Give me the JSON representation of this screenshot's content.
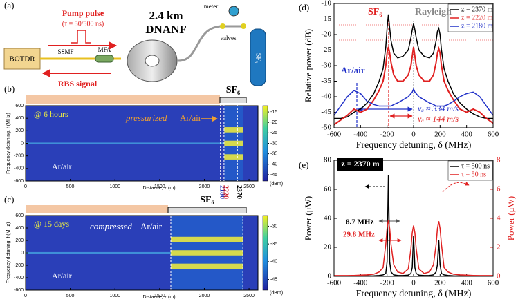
{
  "figure": {
    "panel_labels": [
      "(a)",
      "(b)",
      "(c)",
      "(d)",
      "(e)"
    ]
  },
  "setup": {
    "pump_pulse": "Pump pulse",
    "pulse_width": "(τ = 50/500 ns)",
    "fiber_length": "2.4 km",
    "fiber": "DNANF",
    "meter": "meter",
    "valves": "valves",
    "gas": "SF₆",
    "interrogator": "BOTDR",
    "ssmf": "SSMF",
    "mfa": "MFA",
    "rbs": "RBS signal"
  },
  "heatmaps": [
    {
      "gas_label": "SF₆",
      "time": "@ 6 hours",
      "annotation": [
        "pressurized",
        "Ar/air"
      ],
      "region": "Ar/air",
      "xlabel": "Distance, z (m)",
      "ylabel": "Frequency detuning, f (MHz)",
      "xlim": [
        0,
        2600
      ],
      "xticks": [
        0,
        500,
        1000,
        1500,
        2000,
        2500
      ],
      "ylim": [
        -600,
        600
      ],
      "yticks": [
        600,
        400,
        200,
        0,
        -200,
        -400,
        -600
      ],
      "markers": [
        2180,
        2220,
        2370
      ],
      "marker_colors": [
        "#1f2fb0",
        "#d0202a",
        "#000000"
      ],
      "clim": [
        -48,
        -12
      ],
      "cticks": [
        -15,
        -20,
        -25,
        -30,
        -35,
        -40,
        -45
      ],
      "cunit": "(dBm)"
    },
    {
      "gas_label": "SF₆",
      "time": "@ 15 days",
      "annotation": [
        "compressed",
        "Ar/air"
      ],
      "region": "Ar/air",
      "xlabel": "Distance, z (m)",
      "ylabel": "Frequency detuning, f (MHz)",
      "xlim": [
        0,
        2600
      ],
      "xticks": [
        0,
        500,
        1000,
        1500,
        2000,
        2500
      ],
      "ylim": [
        -600,
        600
      ],
      "yticks": [
        600,
        400,
        200,
        0,
        -200,
        -400,
        -600
      ],
      "clim": [
        -48,
        -27
      ],
      "cticks": [
        -30,
        -35,
        -40,
        -45
      ],
      "cunit": "(dBm)"
    }
  ],
  "chart_data": [
    {
      "type": "line",
      "xlabel": "Frequency detuning, δ (MHz)",
      "ylabel": "Relative power (dB)",
      "xlim": [
        -600,
        600
      ],
      "xticks": [
        -600,
        -400,
        -200,
        0,
        200,
        400,
        600
      ],
      "ylim": [
        -50,
        -10
      ],
      "yticks": [
        -50,
        -45,
        -40,
        -35,
        -30,
        -25,
        -20,
        -15,
        -10
      ],
      "legend": "top-right",
      "annotations": {
        "sf6": "SF₆",
        "rayleigh": "Rayleigh",
        "arair": "Ar/air",
        "va1": "vₐ ≈ 334 m/s",
        "va2": "vₐ ≈ 144 m/s"
      },
      "x": [
        -600,
        -550,
        -500,
        -450,
        -400,
        -350,
        -300,
        -260,
        -230,
        -210,
        -200,
        -190,
        -180,
        -170,
        -150,
        -120,
        -80,
        -40,
        -20,
        -10,
        0,
        10,
        20,
        40,
        80,
        120,
        150,
        170,
        180,
        190,
        200,
        210,
        230,
        260,
        300,
        350,
        400,
        450,
        500,
        550,
        600
      ],
      "series": [
        {
          "name": "z = 2370 m",
          "color": "#000000",
          "values": [
            -47,
            -47,
            -46.5,
            -45,
            -44,
            -42,
            -39,
            -35,
            -31,
            -24,
            -18,
            -13.5,
            -18,
            -22,
            -26,
            -27.5,
            -27,
            -25,
            -21,
            -18.5,
            -16.5,
            -18.5,
            -21,
            -25,
            -27,
            -27.5,
            -26,
            -22,
            -19,
            -18,
            -20,
            -25,
            -31,
            -35,
            -39,
            -42,
            -44,
            -45.5,
            -46.5,
            -47,
            -47
          ]
        },
        {
          "name": "z = 2220 m",
          "color": "#e02020",
          "values": [
            -49,
            -47.5,
            -46,
            -44,
            -45,
            -44,
            -41,
            -38,
            -35,
            -30,
            -26,
            -24,
            -26,
            -29,
            -33,
            -35,
            -35,
            -33,
            -30,
            -27,
            -24,
            -27,
            -30,
            -33,
            -35,
            -35,
            -33,
            -29,
            -26,
            -24.5,
            -26,
            -30,
            -35,
            -38,
            -41,
            -44,
            -45,
            -44,
            -45,
            -47,
            -48.5
          ]
        },
        {
          "name": "z = 2180 m",
          "color": "#2030c8",
          "values": [
            -46,
            -43,
            -40,
            -38,
            -39,
            -41.5,
            -42.5,
            -43,
            -43,
            -43,
            -43,
            -43,
            -43,
            -43,
            -42.5,
            -42,
            -41,
            -40,
            -39,
            -38.5,
            -37.5,
            -38.5,
            -39,
            -40,
            -41,
            -42,
            -42.5,
            -43,
            -43,
            -43,
            -43,
            -43,
            -43,
            -42.5,
            -41.5,
            -40,
            -39,
            -38.5,
            -40,
            -43,
            -46
          ]
        }
      ]
    },
    {
      "type": "line",
      "xlabel": "Frequency detuning, δ (MHz)",
      "ylabel": "Power (μW)",
      "y2label": "Power (μW)",
      "xlim": [
        -600,
        600
      ],
      "xticks": [
        -600,
        -400,
        -200,
        0,
        200,
        400,
        600
      ],
      "ylim": [
        0,
        80
      ],
      "yticks": [
        0,
        20,
        40,
        60,
        80
      ],
      "y2lim": [
        0,
        8
      ],
      "y2ticks": [
        0,
        2,
        4,
        6,
        8
      ],
      "legend": "top-right",
      "annotations": {
        "z": "z = 2370 m",
        "w1": "8.7 MHz",
        "w2": "29.8 MHz"
      },
      "x": [
        -600,
        -550,
        -500,
        -450,
        -400,
        -350,
        -300,
        -260,
        -230,
        -210,
        -200,
        -190,
        -180,
        -170,
        -150,
        -120,
        -80,
        -40,
        -20,
        -10,
        0,
        10,
        20,
        40,
        80,
        120,
        150,
        170,
        180,
        190,
        200,
        210,
        230,
        260,
        300,
        350,
        400,
        450,
        500,
        550,
        600
      ],
      "series": [
        {
          "name": "τ = 500 ns",
          "color": "#000000",
          "values": [
            0.2,
            0.2,
            0.2,
            0.2,
            0.3,
            0.3,
            0.4,
            0.6,
            1,
            2,
            10,
            70,
            10,
            3,
            1,
            0.6,
            0.5,
            0.8,
            2,
            6,
            28,
            6,
            2,
            0.8,
            0.5,
            0.6,
            1,
            3,
            8,
            25,
            8,
            2,
            1,
            0.6,
            0.4,
            0.3,
            0.3,
            0.2,
            0.2,
            0.2,
            0.2
          ]
        },
        {
          "name": "τ = 50 ns",
          "color": "#e02020",
          "axis": "y2",
          "values": [
            0.05,
            0.05,
            0.05,
            0.06,
            0.08,
            0.1,
            0.15,
            0.3,
            0.6,
            2.2,
            3.3,
            3.9,
            3.3,
            2.2,
            0.8,
            0.3,
            0.2,
            0.5,
            1.9,
            3,
            3.5,
            3,
            1.9,
            0.5,
            0.2,
            0.3,
            0.8,
            2.2,
            3.3,
            3.8,
            3.3,
            2.2,
            0.6,
            0.3,
            0.15,
            0.1,
            0.08,
            0.06,
            0.05,
            0.05,
            0.05
          ]
        }
      ]
    }
  ]
}
